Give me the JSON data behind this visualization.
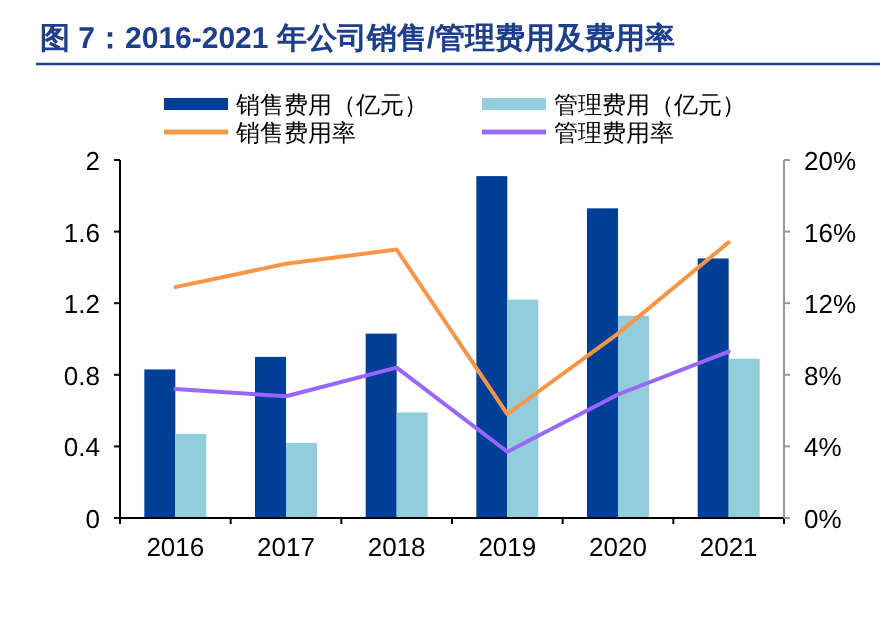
{
  "chart_data": {
    "type": "bar",
    "title": "图 7：2016-2021 年公司销售/管理费用及费用率",
    "categories": [
      "2016",
      "2017",
      "2018",
      "2019",
      "2020",
      "2021"
    ],
    "series": [
      {
        "name": "销售费用（亿元）",
        "color": "#003f98",
        "values": [
          0.83,
          0.9,
          1.03,
          1.91,
          1.73,
          1.45
        ]
      },
      {
        "name": "管理费用（亿元）",
        "color": "#92cddc",
        "values": [
          0.47,
          0.42,
          0.59,
          1.22,
          1.13,
          0.89
        ]
      },
      {
        "name": "销售费用率",
        "type": "line",
        "axis": "y2",
        "color": "#f79646",
        "values": [
          12.9,
          14.2,
          15.0,
          5.8,
          10.3,
          15.4
        ]
      },
      {
        "name": "管理费用率",
        "type": "line",
        "axis": "y2",
        "color": "#9966ff",
        "values": [
          7.2,
          6.8,
          8.4,
          3.7,
          6.9,
          9.3
        ]
      }
    ],
    "ylim": [
      0,
      2
    ],
    "yticks": [
      0,
      0.4,
      0.8,
      1.2,
      1.6,
      2
    ],
    "y2lim": [
      0,
      20
    ],
    "y2ticks": [
      {
        "value": 0,
        "label": "0%"
      },
      {
        "value": 4,
        "label": "4%"
      },
      {
        "value": 8,
        "label": "8%"
      },
      {
        "value": 12,
        "label": "12%"
      },
      {
        "value": 16,
        "label": "16%"
      },
      {
        "value": 20,
        "label": "20%"
      }
    ],
    "legend": "top"
  }
}
